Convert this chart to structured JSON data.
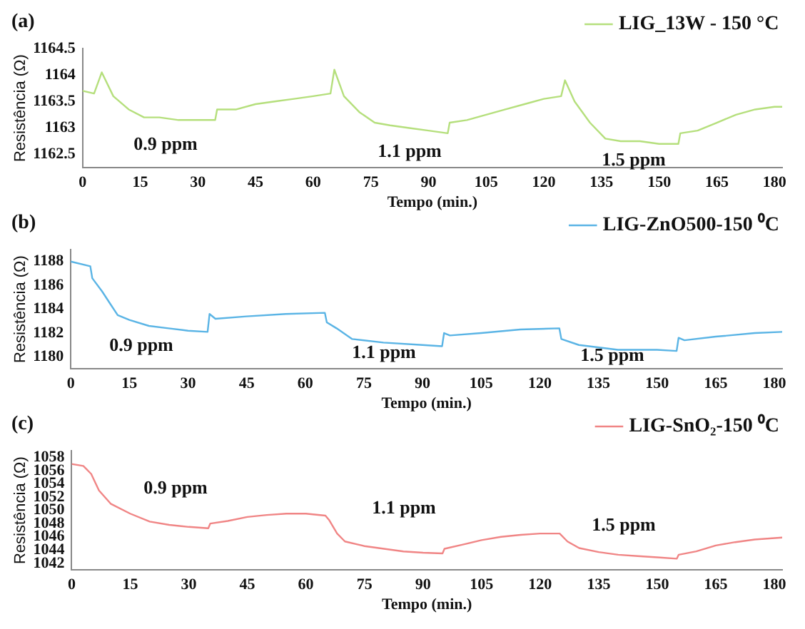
{
  "chart_data": [
    {
      "type": "line",
      "annotations": [
        "(a)",
        "0.9 ppm",
        "1.1 ppm",
        "1.5 ppm"
      ],
      "xlabel": "Tempo (min.)",
      "ylabel": "Resistência (Ω)",
      "xlim": [
        0,
        182
      ],
      "xticks": [
        0,
        15,
        30,
        45,
        60,
        75,
        90,
        105,
        120,
        135,
        150,
        165,
        180
      ],
      "ylim": [
        1162.25,
        1164.5
      ],
      "yticks": [
        1162.5,
        1163,
        1163.5,
        1164,
        1164.5
      ],
      "grid": false,
      "legend": "top right",
      "marker": "none",
      "line_style": "solid",
      "series": [
        {
          "name": "LIG_13W - 150 °C",
          "color": "#b5df7c",
          "x": [
            0,
            3,
            5,
            8,
            12,
            16,
            20,
            25,
            30,
            34.5,
            35,
            40,
            45,
            50,
            55,
            60,
            64.5,
            65.5,
            68,
            72,
            76,
            80,
            85,
            90,
            95,
            95.5,
            100,
            105,
            110,
            115,
            120,
            124.5,
            125.5,
            128,
            132,
            136,
            140,
            145,
            150,
            155,
            155.5,
            160,
            165,
            170,
            175,
            180,
            182
          ],
          "values": [
            1163.7,
            1163.65,
            1164.05,
            1163.6,
            1163.35,
            1163.2,
            1163.2,
            1163.15,
            1163.15,
            1163.15,
            1163.35,
            1163.35,
            1163.45,
            1163.5,
            1163.55,
            1163.6,
            1163.65,
            1164.1,
            1163.6,
            1163.3,
            1163.1,
            1163.05,
            1163.0,
            1162.95,
            1162.9,
            1163.1,
            1163.15,
            1163.25,
            1163.35,
            1163.45,
            1163.55,
            1163.6,
            1163.9,
            1163.5,
            1163.1,
            1162.8,
            1162.75,
            1162.75,
            1162.7,
            1162.7,
            1162.9,
            1162.95,
            1163.1,
            1163.25,
            1163.35,
            1163.4,
            1163.4
          ]
        }
      ]
    },
    {
      "type": "line",
      "annotations": [
        "(b)",
        "0.9 ppm",
        "1.1 ppm",
        "1.5 ppm"
      ],
      "xlabel": "Tempo (min.)",
      "ylabel": "Resistência (Ω)",
      "xlim": [
        0,
        182
      ],
      "xticks": [
        0,
        15,
        30,
        45,
        60,
        75,
        90,
        105,
        120,
        135,
        150,
        165,
        180
      ],
      "ylim": [
        1179,
        1189
      ],
      "yticks": [
        1180,
        1182,
        1184,
        1186,
        1188
      ],
      "grid": false,
      "legend": "top right",
      "marker": "none",
      "line_style": "solid",
      "series": [
        {
          "name": "LIG-ZnO500-150 ⁰C",
          "color": "#5ab4e5",
          "x": [
            0,
            5,
            5.5,
            8,
            10,
            12,
            15,
            20,
            25,
            30,
            35,
            35.5,
            37,
            45,
            55,
            65,
            65.5,
            68,
            72,
            80,
            90,
            95,
            95.5,
            97,
            105,
            115,
            125,
            125.5,
            130,
            140,
            150,
            155,
            155.5,
            157,
            165,
            175,
            182
          ],
          "values": [
            1188,
            1187.6,
            1186.6,
            1185.5,
            1184.5,
            1183.5,
            1183.1,
            1182.6,
            1182.4,
            1182.2,
            1182.1,
            1183.6,
            1183.2,
            1183.4,
            1183.6,
            1183.7,
            1182.9,
            1182.4,
            1181.5,
            1181.2,
            1181.0,
            1180.9,
            1182.0,
            1181.8,
            1182.0,
            1182.3,
            1182.4,
            1181.5,
            1181.0,
            1180.6,
            1180.6,
            1180.5,
            1181.6,
            1181.4,
            1181.7,
            1182.0,
            1182.1
          ]
        }
      ]
    },
    {
      "type": "line",
      "annotations": [
        "(c)",
        "0.9 ppm",
        "1.1 ppm",
        "1.5 ppm"
      ],
      "xlabel": "Tempo (min.)",
      "ylabel": "Resistência (Ω)",
      "xlim": [
        0,
        182
      ],
      "xticks": [
        0,
        15,
        30,
        45,
        60,
        75,
        90,
        105,
        120,
        135,
        150,
        165,
        180
      ],
      "ylim": [
        1041,
        1059
      ],
      "yticks": [
        1042,
        1044,
        1046,
        1048,
        1050,
        1052,
        1054,
        1056,
        1058
      ],
      "grid": false,
      "legend": "top right",
      "marker": "none",
      "line_style": "solid",
      "series": [
        {
          "name": "LIG-SnO₂-150 ⁰C",
          "color": "#f08585",
          "x": [
            0,
            3,
            5,
            7,
            10,
            15,
            20,
            25,
            30,
            35,
            35.5,
            40,
            45,
            50,
            55,
            60,
            65,
            66,
            68,
            70,
            75,
            80,
            85,
            90,
            95,
            95.5,
            100,
            105,
            110,
            115,
            120,
            125,
            127,
            130,
            135,
            140,
            145,
            150,
            155,
            155.5,
            160,
            165,
            170,
            175,
            182
          ],
          "values": [
            1057,
            1056.7,
            1055.5,
            1053,
            1051,
            1049.5,
            1048.3,
            1047.8,
            1047.5,
            1047.3,
            1048,
            1048.4,
            1049,
            1049.3,
            1049.5,
            1049.5,
            1049.2,
            1048.5,
            1046.5,
            1045.3,
            1044.6,
            1044.2,
            1043.8,
            1043.6,
            1043.5,
            1044.2,
            1044.8,
            1045.5,
            1046,
            1046.3,
            1046.5,
            1046.5,
            1045.3,
            1044.3,
            1043.7,
            1043.3,
            1043.1,
            1042.9,
            1042.7,
            1043.3,
            1043.8,
            1044.7,
            1045.2,
            1045.6,
            1045.9
          ]
        }
      ]
    }
  ]
}
